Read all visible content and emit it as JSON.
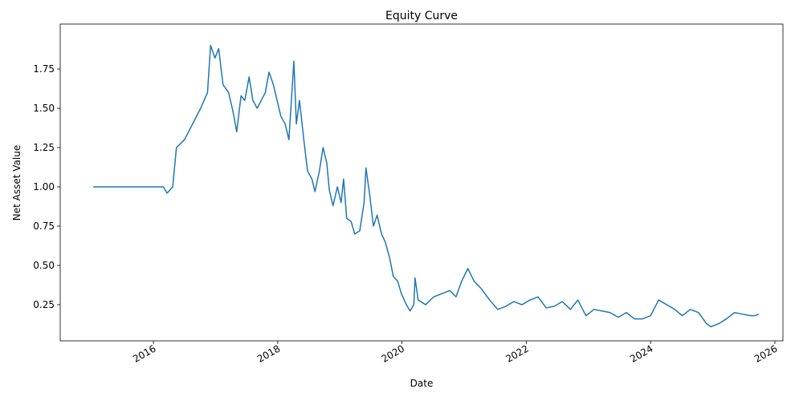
{
  "chart_data": {
    "type": "line",
    "title": "Equity Curve",
    "x_label": "Date",
    "y_label": "Net Asset Value",
    "color": "#1f77b4",
    "x": [
      2015.03,
      2016.16,
      2016.22,
      2016.31,
      2016.37,
      2016.5,
      2016.63,
      2016.76,
      2016.87,
      2016.92,
      2016.99,
      2017.05,
      2017.12,
      2017.21,
      2017.28,
      2017.34,
      2017.41,
      2017.47,
      2017.54,
      2017.6,
      2017.67,
      2017.8,
      2017.86,
      2017.93,
      2017.99,
      2018.05,
      2018.12,
      2018.18,
      2018.26,
      2018.3,
      2018.35,
      2018.42,
      2018.48,
      2018.55,
      2018.6,
      2018.67,
      2018.73,
      2018.79,
      2018.83,
      2018.89,
      2018.96,
      2019.02,
      2019.06,
      2019.11,
      2019.18,
      2019.24,
      2019.32,
      2019.39,
      2019.42,
      2019.48,
      2019.54,
      2019.6,
      2019.67,
      2019.73,
      2019.8,
      2019.86,
      2019.93,
      2019.99,
      2020.07,
      2020.13,
      2020.19,
      2020.21,
      2020.26,
      2020.38,
      2020.51,
      2020.64,
      2020.77,
      2020.87,
      2020.96,
      2021.06,
      2021.16,
      2021.28,
      2021.41,
      2021.54,
      2021.67,
      2021.8,
      2021.93,
      2022.06,
      2022.19,
      2022.32,
      2022.45,
      2022.58,
      2022.71,
      2022.83,
      2022.96,
      2023.09,
      2023.22,
      2023.35,
      2023.48,
      2023.61,
      2023.74,
      2023.87,
      2024.0,
      2024.13,
      2024.26,
      2024.39,
      2024.51,
      2024.64,
      2024.77,
      2024.9,
      2024.97,
      2025.1,
      2025.22,
      2025.35,
      2025.48,
      2025.61,
      2025.68,
      2025.74
    ],
    "values": [
      1.0,
      1.0,
      0.96,
      1.0,
      1.25,
      1.3,
      1.4,
      1.5,
      1.6,
      1.9,
      1.82,
      1.88,
      1.65,
      1.6,
      1.48,
      1.35,
      1.58,
      1.55,
      1.7,
      1.55,
      1.5,
      1.6,
      1.73,
      1.65,
      1.55,
      1.45,
      1.4,
      1.3,
      1.8,
      1.4,
      1.55,
      1.3,
      1.1,
      1.05,
      0.97,
      1.1,
      1.25,
      1.15,
      0.98,
      0.88,
      1.0,
      0.9,
      1.05,
      0.8,
      0.78,
      0.7,
      0.72,
      0.9,
      1.12,
      0.95,
      0.75,
      0.82,
      0.7,
      0.65,
      0.55,
      0.43,
      0.4,
      0.32,
      0.25,
      0.21,
      0.25,
      0.42,
      0.28,
      0.25,
      0.3,
      0.32,
      0.34,
      0.3,
      0.4,
      0.48,
      0.4,
      0.35,
      0.28,
      0.22,
      0.24,
      0.27,
      0.25,
      0.28,
      0.3,
      0.23,
      0.24,
      0.27,
      0.22,
      0.28,
      0.18,
      0.22,
      0.21,
      0.2,
      0.17,
      0.2,
      0.16,
      0.16,
      0.18,
      0.28,
      0.25,
      0.22,
      0.18,
      0.22,
      0.2,
      0.13,
      0.11,
      0.13,
      0.16,
      0.2,
      0.19,
      0.18,
      0.18,
      0.19
    ],
    "xlim": [
      2014.5,
      2026.13
    ],
    "xticks": [
      2016,
      2018,
      2020,
      2022,
      2024,
      2026
    ],
    "ylim": [
      0.02,
      2.036
    ],
    "yticks": [
      0.25,
      {
        "value": 0.5,
        "label": "0.50"
      },
      0.75,
      {
        "value": 1,
        "label": "1.00"
      },
      1.25,
      {
        "value": 1.5,
        "label": "1.50"
      },
      1.75
    ],
    "grid": false
  }
}
